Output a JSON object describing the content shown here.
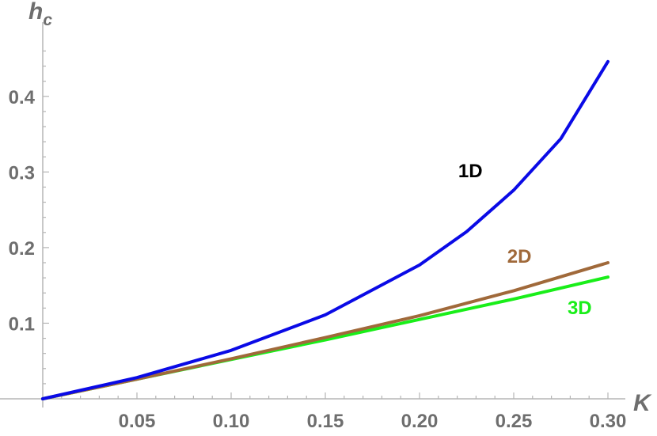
{
  "chart_data": {
    "type": "line",
    "title": "",
    "xlabel": "K",
    "ylabel": {
      "main": "h",
      "sub": "c"
    },
    "xlim": [
      0,
      0.3
    ],
    "ylim": [
      0,
      0.45
    ],
    "xticks": [
      "0.05",
      "0.10",
      "0.15",
      "0.20",
      "0.25",
      "0.30"
    ],
    "yticks": [
      "0.1",
      "0.2",
      "0.3",
      "0.4"
    ],
    "xtick_values": [
      0.05,
      0.1,
      0.15,
      0.2,
      0.25,
      0.3
    ],
    "ytick_values": [
      0.1,
      0.2,
      0.3,
      0.4
    ],
    "grid": false,
    "legend": "none (series labelled directly on the curves)",
    "series": [
      {
        "name": "1D",
        "color": "#0a0ae6",
        "x": [
          0,
          0.05,
          0.1,
          0.15,
          0.2,
          0.225,
          0.25,
          0.275,
          0.3
        ],
        "y": [
          0,
          0.028,
          0.064,
          0.111,
          0.177,
          0.221,
          0.276,
          0.344,
          0.446
        ],
        "label_at": [
          0.227,
          0.293
        ]
      },
      {
        "name": "2D",
        "color": "#a0693a",
        "x": [
          0,
          0.05,
          0.1,
          0.15,
          0.2,
          0.25,
          0.3
        ],
        "y": [
          0,
          0.026,
          0.053,
          0.081,
          0.11,
          0.143,
          0.18
        ],
        "label_at": [
          0.253,
          0.18
        ]
      },
      {
        "name": "3D",
        "color": "#19ee19",
        "x": [
          0,
          0.05,
          0.1,
          0.15,
          0.2,
          0.25,
          0.3
        ],
        "y": [
          0,
          0.026,
          0.052,
          0.078,
          0.105,
          0.132,
          0.161
        ],
        "label_at": [
          0.285,
          0.112
        ]
      }
    ]
  }
}
